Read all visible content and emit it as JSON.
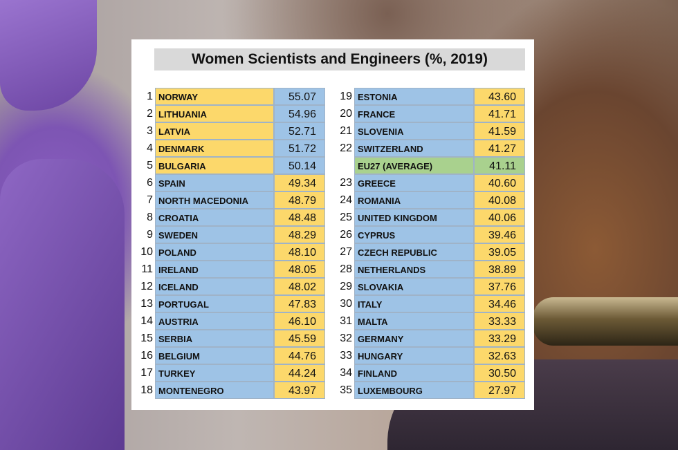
{
  "title": "Women Scientists and Engineers (%, 2019)",
  "colors": {
    "yellow": "#fcd86b",
    "blue": "#9ec3e6",
    "green": "#a9d18e"
  },
  "left_column": [
    {
      "rank": "1",
      "country": "NORWAY",
      "value": "55.07",
      "country_color": "yellow",
      "value_color": "blue"
    },
    {
      "rank": "2",
      "country": "LITHUANIA",
      "value": "54.96",
      "country_color": "yellow",
      "value_color": "blue"
    },
    {
      "rank": "3",
      "country": "LATVIA",
      "value": "52.71",
      "country_color": "yellow",
      "value_color": "blue"
    },
    {
      "rank": "4",
      "country": "DENMARK",
      "value": "51.72",
      "country_color": "yellow",
      "value_color": "blue"
    },
    {
      "rank": "5",
      "country": "BULGARIA",
      "value": "50.14",
      "country_color": "yellow",
      "value_color": "blue"
    },
    {
      "rank": "6",
      "country": "SPAIN",
      "value": "49.34",
      "country_color": "blue",
      "value_color": "yellow"
    },
    {
      "rank": "7",
      "country": "NORTH MACEDONIA",
      "value": "48.79",
      "country_color": "blue",
      "value_color": "yellow"
    },
    {
      "rank": "8",
      "country": "CROATIA",
      "value": "48.48",
      "country_color": "blue",
      "value_color": "yellow"
    },
    {
      "rank": "9",
      "country": "SWEDEN",
      "value": "48.29",
      "country_color": "blue",
      "value_color": "yellow"
    },
    {
      "rank": "10",
      "country": "POLAND",
      "value": "48.10",
      "country_color": "blue",
      "value_color": "yellow"
    },
    {
      "rank": "11",
      "country": "IRELAND",
      "value": "48.05",
      "country_color": "blue",
      "value_color": "yellow"
    },
    {
      "rank": "12",
      "country": "ICELAND",
      "value": "48.02",
      "country_color": "blue",
      "value_color": "yellow"
    },
    {
      "rank": "13",
      "country": "PORTUGAL",
      "value": "47.83",
      "country_color": "blue",
      "value_color": "yellow"
    },
    {
      "rank": "14",
      "country": "AUSTRIA",
      "value": "46.10",
      "country_color": "blue",
      "value_color": "yellow"
    },
    {
      "rank": "15",
      "country": "SERBIA",
      "value": "45.59",
      "country_color": "blue",
      "value_color": "yellow"
    },
    {
      "rank": "16",
      "country": "BELGIUM",
      "value": "44.76",
      "country_color": "blue",
      "value_color": "yellow"
    },
    {
      "rank": "17",
      "country": "TURKEY",
      "value": "44.24",
      "country_color": "blue",
      "value_color": "yellow"
    },
    {
      "rank": "18",
      "country": "MONTENEGRO",
      "value": "43.97",
      "country_color": "blue",
      "value_color": "yellow"
    }
  ],
  "right_column": [
    {
      "rank": "19",
      "country": "ESTONIA",
      "value": "43.60",
      "country_color": "blue",
      "value_color": "yellow"
    },
    {
      "rank": "20",
      "country": "FRANCE",
      "value": "41.71",
      "country_color": "blue",
      "value_color": "yellow"
    },
    {
      "rank": "21",
      "country": "SLOVENIA",
      "value": "41.59",
      "country_color": "blue",
      "value_color": "yellow"
    },
    {
      "rank": "22",
      "country": "SWITZERLAND",
      "value": "41.27",
      "country_color": "blue",
      "value_color": "yellow"
    },
    {
      "rank": "",
      "country": "EU27 (AVERAGE)",
      "value": "41.11",
      "country_color": "green",
      "value_color": "green"
    },
    {
      "rank": "23",
      "country": "GREECE",
      "value": "40.60",
      "country_color": "blue",
      "value_color": "yellow"
    },
    {
      "rank": "24",
      "country": "ROMANIA",
      "value": "40.08",
      "country_color": "blue",
      "value_color": "yellow"
    },
    {
      "rank": "25",
      "country": "UNITED KINGDOM",
      "value": "40.06",
      "country_color": "blue",
      "value_color": "yellow"
    },
    {
      "rank": "26",
      "country": "CYPRUS",
      "value": "39.46",
      "country_color": "blue",
      "value_color": "yellow"
    },
    {
      "rank": "27",
      "country": "CZECH REPUBLIC",
      "value": "39.05",
      "country_color": "blue",
      "value_color": "yellow"
    },
    {
      "rank": "28",
      "country": "NETHERLANDS",
      "value": "38.89",
      "country_color": "blue",
      "value_color": "yellow"
    },
    {
      "rank": "29",
      "country": "SLOVAKIA",
      "value": "37.76",
      "country_color": "blue",
      "value_color": "yellow"
    },
    {
      "rank": "30",
      "country": "ITALY",
      "value": "34.46",
      "country_color": "blue",
      "value_color": "yellow"
    },
    {
      "rank": "31",
      "country": "MALTA",
      "value": "33.33",
      "country_color": "blue",
      "value_color": "yellow"
    },
    {
      "rank": "32",
      "country": "GERMANY",
      "value": "33.29",
      "country_color": "blue",
      "value_color": "yellow"
    },
    {
      "rank": "33",
      "country": "HUNGARY",
      "value": "32.63",
      "country_color": "blue",
      "value_color": "yellow"
    },
    {
      "rank": "34",
      "country": "FINLAND",
      "value": "30.50",
      "country_color": "blue",
      "value_color": "yellow"
    },
    {
      "rank": "35",
      "country": "LUXEMBOURG",
      "value": "27.97",
      "country_color": "blue",
      "value_color": "yellow"
    }
  ]
}
